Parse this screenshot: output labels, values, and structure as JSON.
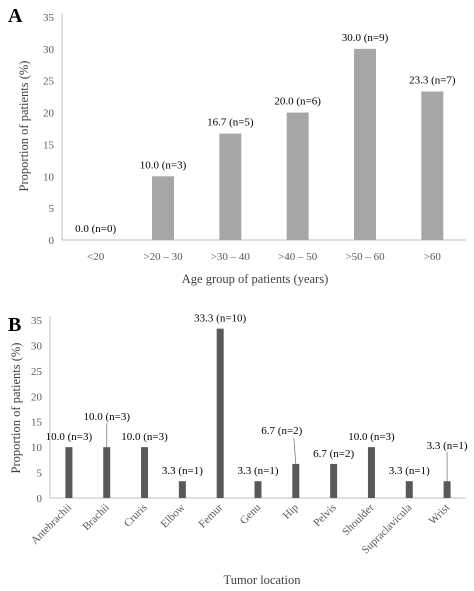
{
  "figure": {
    "panel_a_label": "A",
    "panel_b_label": "B"
  },
  "colors": {
    "bar_a": "#a6a6a6",
    "bar_b": "#595959",
    "axis": "#bfbfbf",
    "tick_text": "#595959",
    "label_text": "#000000"
  },
  "chart_data": [
    {
      "type": "bar",
      "panel": "A",
      "categories": [
        "<20",
        ">20 – 30",
        ">30 – 40",
        ">40 – 50",
        ">50 – 60",
        ">60"
      ],
      "values": [
        0.0,
        10.0,
        16.7,
        20.0,
        30.0,
        23.3
      ],
      "data_labels": [
        "0.0 (n=0)",
        "10.0 (n=3)",
        "16.7 (n=5)",
        "20.0 (n=6)",
        "30.0 (n=9)",
        "23.3 (n=7)"
      ],
      "xlabel": "Age group of patients (years)",
      "ylabel": "Proportion of patients (%)",
      "ylim": [
        0,
        35
      ],
      "yticks": [
        0,
        5,
        10,
        15,
        20,
        25,
        30,
        35
      ],
      "grid": false,
      "legend": "none"
    },
    {
      "type": "bar",
      "panel": "B",
      "categories": [
        "Antebrachii",
        "Brachii",
        "Cruris",
        "Elbow",
        "Femur",
        "Genu",
        "Hip",
        "Pelvis",
        "Shoulder",
        "Supraclavicula",
        "Wrist"
      ],
      "values": [
        10.0,
        10.0,
        10.0,
        3.3,
        33.3,
        3.3,
        6.7,
        6.7,
        10.0,
        3.3,
        3.3
      ],
      "data_labels": [
        "10.0 (n=3)",
        "10.0 (n=3)",
        "10.0 (n=3)",
        "3.3 (n=1)",
        "33.3 (n=10)",
        "3.3 (n=1)",
        "6.7 (n=2)",
        "6.7 (n=2)",
        "10.0 (n=3)",
        "3.3 (n=1)",
        "3.3 (n=1)"
      ],
      "xlabel": "Tumor location",
      "ylabel": "Proportion of patients (%)",
      "ylim": [
        0,
        35
      ],
      "yticks": [
        0,
        5,
        10,
        15,
        20,
        25,
        30,
        35
      ],
      "grid": false,
      "legend": "none"
    }
  ]
}
